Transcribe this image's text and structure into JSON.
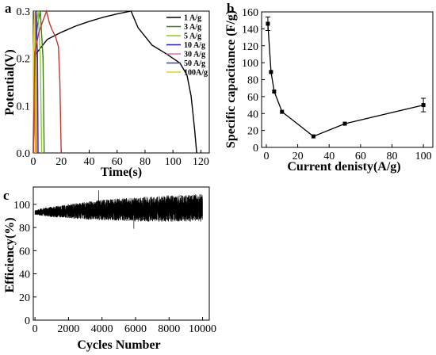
{
  "chart_data": [
    {
      "panel": "a",
      "type": "line",
      "xlabel": "Time(s)",
      "ylabel": "Potential(V)",
      "xlim": [
        0,
        126
      ],
      "ylim": [
        0,
        0.3
      ],
      "xticks": [
        "0",
        "20",
        "40",
        "60",
        "80",
        "100",
        "120"
      ],
      "yticks": [
        "0.0",
        "0.1",
        "0.2",
        "0.3"
      ],
      "legend_position": "top-right",
      "colors": {
        "1 A/g": "#000000",
        "3  A/g": "#3a7d1a",
        "5  A/g": "#8ccc2a",
        "10 A/g": "#1f1fbf",
        "30 A/g": "#e06fae",
        "50 A/g": "#3b3bd4",
        "100A/g": "#e8d21a",
        "red": "#c0392b"
      },
      "series": [
        {
          "name": "1  A/g",
          "x": [
            0,
            2,
            10,
            20,
            30,
            40,
            50,
            60,
            70,
            75,
            85,
            95,
            105,
            110,
            113,
            115.5,
            117
          ],
          "y": [
            0,
            0.21,
            0.24,
            0.255,
            0.268,
            0.278,
            0.287,
            0.294,
            0.3,
            0.265,
            0.228,
            0.21,
            0.19,
            0.165,
            0.12,
            0.05,
            0
          ]
        },
        {
          "name": "3  A/g",
          "x": [
            0,
            1,
            3,
            5,
            7,
            7.8
          ],
          "y": [
            0,
            0.22,
            0.27,
            0.3,
            0.2,
            0
          ]
        },
        {
          "name": "5  A/g",
          "x": [
            0,
            0.8,
            2,
            3.5,
            5,
            6
          ],
          "y": [
            0,
            0.22,
            0.27,
            0.3,
            0.2,
            0
          ]
        },
        {
          "name": "10 A/g",
          "x": [
            0,
            0.5,
            1.2,
            2,
            3,
            3.4
          ],
          "y": [
            0,
            0.22,
            0.27,
            0.3,
            0.2,
            0
          ]
        },
        {
          "name": "30 A/g",
          "x": [
            0,
            0.3,
            0.8,
            1.3,
            1.9,
            2.2
          ],
          "y": [
            0,
            0.22,
            0.27,
            0.3,
            0.2,
            0
          ]
        },
        {
          "name": "50 A/g",
          "x": [
            0,
            0.25,
            0.6,
            1,
            1.5,
            1.8
          ],
          "y": [
            0,
            0.22,
            0.27,
            0.3,
            0.2,
            0
          ]
        },
        {
          "name": "100A/g",
          "x": [
            0,
            0.2,
            0.5,
            0.8,
            1.2,
            1.5
          ],
          "y": [
            0,
            0.22,
            0.27,
            0.3,
            0.2,
            0
          ]
        },
        {
          "x": [
            0,
            1,
            4,
            7,
            9.5,
            11.5,
            13.5,
            16,
            18,
            19,
            20
          ],
          "y": [
            0,
            0.21,
            0.255,
            0.28,
            0.3,
            0.275,
            0.26,
            0.245,
            0.225,
            0.15,
            0
          ]
        }
      ]
    },
    {
      "panel": "b",
      "type": "line",
      "xlabel": "Current denisty(A/g)",
      "ylabel": "Specific capacitance (F/g)",
      "xlim": [
        -3,
        106
      ],
      "ylim": [
        0,
        160
      ],
      "xticks": [
        "0",
        "20",
        "40",
        "60",
        "80",
        "100"
      ],
      "yticks": [
        "0",
        "20",
        "40",
        "60",
        "80",
        "100",
        "120",
        "140",
        "160"
      ],
      "series": [
        {
          "x": [
            1,
            3,
            5,
            10,
            30,
            50,
            100
          ],
          "y": [
            146,
            89,
            66,
            42,
            13,
            28,
            50
          ],
          "err": [
            8,
            0,
            0,
            0,
            0,
            0,
            8
          ]
        }
      ]
    },
    {
      "panel": "c",
      "type": "line",
      "xlabel": "Cycles Number",
      "ylabel": "Efficiency(%)",
      "xlim": [
        -100,
        10400
      ],
      "ylim": [
        0,
        115
      ],
      "xticks": [
        "0",
        "2000",
        "4000",
        "6000",
        "8000",
        "10000"
      ],
      "yticks": [
        "0",
        "20",
        "40",
        "60",
        "80",
        "100"
      ],
      "band_x": [
        0,
        500,
        1000,
        2000,
        3000,
        4000,
        5000,
        6000,
        7000,
        8000,
        9000,
        10000
      ],
      "band_low": [
        91,
        90,
        89,
        88,
        87,
        86,
        86,
        85,
        85,
        85,
        85,
        85
      ],
      "band_high": [
        95,
        97,
        98,
        100,
        102,
        104,
        105,
        106,
        107,
        108,
        108,
        109
      ]
    }
  ]
}
